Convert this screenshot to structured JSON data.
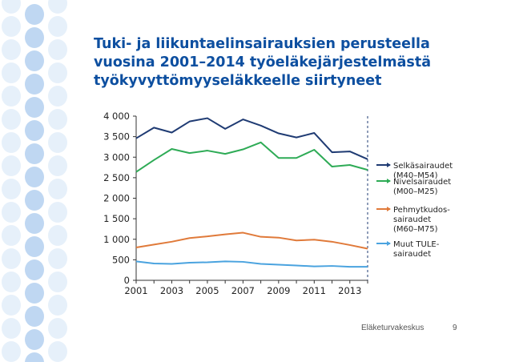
{
  "slide": {
    "title_lines": [
      "Tuki- ja liikuntaelinsairauksien perusteella",
      "vuosina 2001–2014 työeläkejärjestelmästä",
      "työkyvyttömyyseläkkeelle siirtyneet"
    ],
    "footer_org": "Eläketurvakeskus",
    "page_number": "9"
  },
  "colors": {
    "title": "#0d4fa0",
    "decor_light": "#d6e6f7",
    "decor_mid": "#a9c9ee",
    "axis": "#333333"
  },
  "chart_data": {
    "type": "line",
    "x": [
      2001,
      2002,
      2003,
      2004,
      2005,
      2006,
      2007,
      2008,
      2009,
      2010,
      2011,
      2012,
      2013,
      2014
    ],
    "x_tick_labels": [
      "2001",
      "2003",
      "2005",
      "2007",
      "2009",
      "2011",
      "2013"
    ],
    "y_tick_labels": [
      "0",
      "500",
      "1 000",
      "1 500",
      "2 000",
      "2 500",
      "3 000",
      "3 500",
      "4 000"
    ],
    "ylim": [
      0,
      4000
    ],
    "grid": false,
    "legend_position": "right",
    "series": [
      {
        "name": "Selkäsairaudet (M40–M54)",
        "legend_lines": [
          "Selkäsairaudet",
          "(M40–M54)"
        ],
        "color": "#1f3b73",
        "values": [
          3460,
          3720,
          3600,
          3870,
          3950,
          3690,
          3920,
          3770,
          3580,
          3480,
          3590,
          3120,
          3140,
          2950
        ]
      },
      {
        "name": "Nivelsairaudet (M00–M25)",
        "legend_lines": [
          "Nivelsairaudet",
          "(M00–M25)"
        ],
        "color": "#2eab56",
        "values": [
          2640,
          2930,
          3200,
          3100,
          3160,
          3080,
          3190,
          3360,
          2980,
          2980,
          3180,
          2770,
          2810,
          2690
        ]
      },
      {
        "name": "Pehmytkudos-sairaudet (M60–M75)",
        "legend_lines": [
          "Pehmytkudos-",
          "sairaudet",
          "(M60–M75)"
        ],
        "color": "#e07a3a",
        "values": [
          800,
          870,
          940,
          1030,
          1070,
          1120,
          1160,
          1060,
          1040,
          970,
          990,
          940,
          860,
          770
        ]
      },
      {
        "name": "Muut TULE-sairaudet",
        "legend_lines": [
          "Muut TULE-",
          "sairaudet"
        ],
        "color": "#4aa3df",
        "values": [
          460,
          410,
          400,
          430,
          440,
          460,
          450,
          400,
          380,
          360,
          340,
          350,
          330,
          330
        ]
      }
    ],
    "annotation": "dashed vertical line at 2014"
  }
}
